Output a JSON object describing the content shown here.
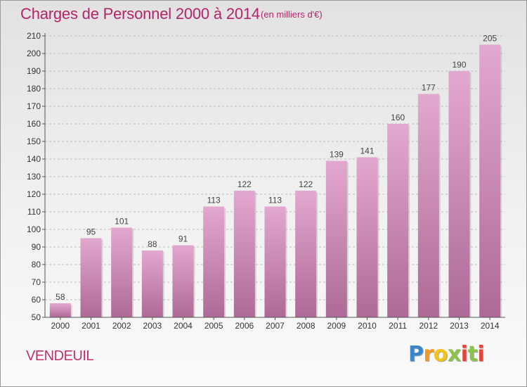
{
  "title": "Charges de Personnel 2000 à 2014",
  "unit_note": "(en milliers d'€)",
  "commune": "VENDEUIL",
  "brand": {
    "name": "Proxiti",
    "letters": [
      "P",
      "r",
      "o",
      "x",
      "i",
      "t",
      "i"
    ]
  },
  "colors": {
    "title": "#b3246a",
    "bar_top": "#e3a8cf",
    "bar_bottom": "#ad6a96",
    "axis": "#555555",
    "grid": "#bdbdbd"
  },
  "chart_data": {
    "type": "bar",
    "categories": [
      "2000",
      "2001",
      "2002",
      "2003",
      "2004",
      "2005",
      "2006",
      "2007",
      "2008",
      "2009",
      "2010",
      "2011",
      "2012",
      "2013",
      "2014"
    ],
    "values": [
      58,
      95,
      101,
      88,
      91,
      113,
      122,
      113,
      122,
      139,
      141,
      160,
      177,
      190,
      205
    ],
    "title": "Charges de Personnel 2000 à 2014",
    "xlabel": "",
    "ylabel": "",
    "ylim": [
      50,
      210
    ],
    "yticks": [
      50,
      60,
      70,
      80,
      90,
      100,
      110,
      120,
      130,
      140,
      150,
      160,
      170,
      180,
      190,
      200,
      210
    ],
    "grid": true,
    "data_labels": true
  }
}
